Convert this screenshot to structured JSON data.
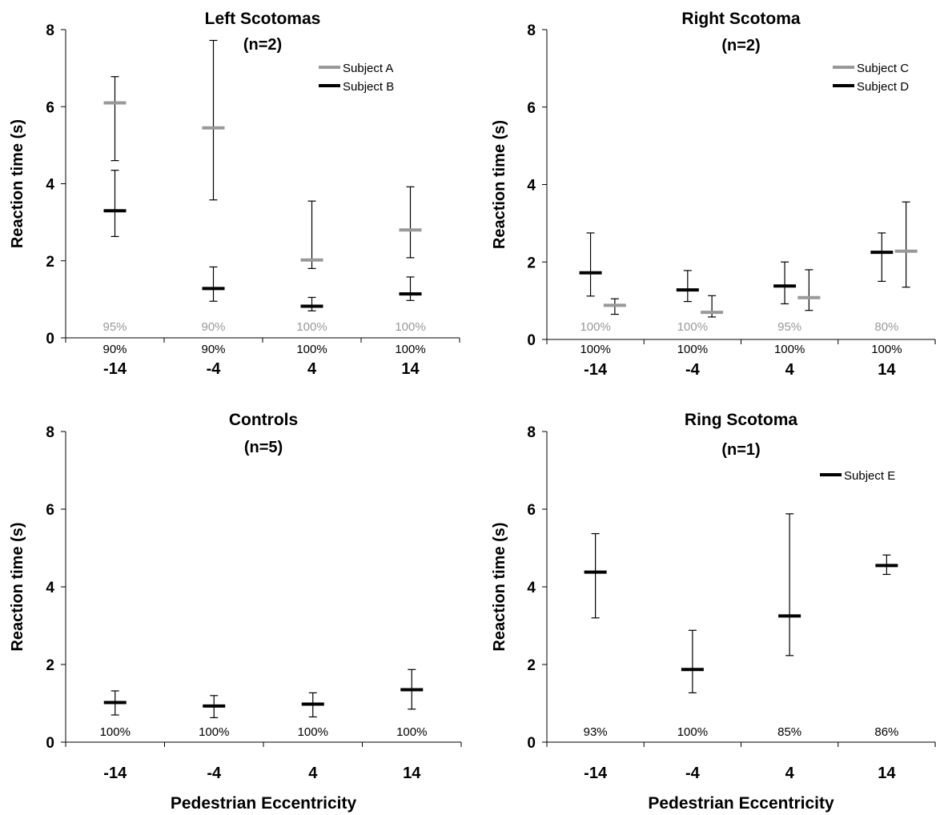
{
  "colors": {
    "dark": "#000000",
    "light": "#999999"
  },
  "chart_data": [
    {
      "type": "errorbar",
      "title": "Left Scotomas",
      "subtitle": "(n=2)",
      "ylabel": "Reaction time (s)",
      "xlabel": "",
      "ylim": [
        0,
        8
      ],
      "yticks": [
        0,
        2,
        4,
        6,
        8
      ],
      "categories": [
        "-14",
        "-4",
        "4",
        "14"
      ],
      "legend": "top-right",
      "series": [
        {
          "name": "Subject A",
          "color": "#999999",
          "offset": 0,
          "values": [
            6.1,
            5.45,
            2.02,
            2.8
          ],
          "lower": [
            4.6,
            3.58,
            1.8,
            2.08
          ],
          "upper": [
            6.78,
            7.72,
            3.55,
            3.92
          ]
        },
        {
          "name": "Subject B",
          "color": "#000000",
          "offset": 0,
          "values": [
            3.3,
            1.28,
            0.82,
            1.14
          ],
          "lower": [
            2.63,
            0.95,
            0.7,
            0.97
          ],
          "upper": [
            4.35,
            1.84,
            1.05,
            1.58
          ]
        }
      ],
      "annotations": [
        {
          "series": "Subject A",
          "row": "top",
          "labels": [
            "95%",
            "90%",
            "100%",
            "100%"
          ]
        },
        {
          "series": "Subject B",
          "row": "bottom",
          "labels": [
            "90%",
            "90%",
            "100%",
            "100%"
          ]
        }
      ]
    },
    {
      "type": "errorbar",
      "title": "Right Scotoma",
      "subtitle": "(n=2)",
      "ylabel": "Reaction time (s)",
      "xlabel": "",
      "ylim": [
        0,
        8
      ],
      "yticks": [
        0,
        2,
        4,
        6,
        8
      ],
      "categories": [
        "-14",
        "-4",
        "4",
        "14"
      ],
      "legend": "top-right",
      "series": [
        {
          "name": "Subject C",
          "color": "#999999",
          "offset": 0.2,
          "values": [
            0.88,
            0.7,
            1.08,
            2.28
          ],
          "lower": [
            0.65,
            0.58,
            0.75,
            1.35
          ],
          "upper": [
            1.05,
            1.13,
            1.8,
            3.55
          ]
        },
        {
          "name": "Subject D",
          "color": "#000000",
          "offset": -0.05,
          "values": [
            1.72,
            1.28,
            1.38,
            2.25
          ],
          "lower": [
            1.12,
            0.98,
            0.92,
            1.5
          ],
          "upper": [
            2.75,
            1.78,
            2.0,
            2.75
          ]
        }
      ],
      "annotations": [
        {
          "series": "Subject C",
          "row": "top",
          "labels": [
            "100%",
            "100%",
            "95%",
            "80%"
          ]
        },
        {
          "series": "Subject D",
          "row": "bottom",
          "labels": [
            "100%",
            "100%",
            "100%",
            "100%"
          ]
        }
      ]
    },
    {
      "type": "errorbar",
      "title": "Controls",
      "subtitle": "(n=5)",
      "ylabel": "Reaction time (s)",
      "xlabel": "Pedestrian Eccentricity",
      "ylim": [
        0,
        8
      ],
      "yticks": [
        0,
        2,
        4,
        6,
        8
      ],
      "categories": [
        "-14",
        "-4",
        "4",
        "14"
      ],
      "legend": "none",
      "series": [
        {
          "name": "",
          "color": "#000000",
          "offset": 0,
          "values": [
            1.02,
            0.93,
            0.98,
            1.35
          ],
          "lower": [
            0.7,
            0.63,
            0.65,
            0.85
          ],
          "upper": [
            1.32,
            1.2,
            1.27,
            1.87
          ]
        }
      ],
      "annotations": [
        {
          "series": "",
          "row": "single",
          "labels": [
            "100%",
            "100%",
            "100%",
            "100%"
          ]
        }
      ]
    },
    {
      "type": "errorbar",
      "title": "Ring Scotoma",
      "subtitle": "(n=1)",
      "ylabel": "Reaction time (s)",
      "xlabel": "Pedestrian Eccentricity",
      "ylim": [
        0,
        8
      ],
      "yticks": [
        0,
        2,
        4,
        6,
        8
      ],
      "categories": [
        "-14",
        "-4",
        "4",
        "14"
      ],
      "legend": "top-right",
      "series": [
        {
          "name": "Subject E",
          "color": "#000000",
          "offset": 0,
          "values": [
            4.38,
            1.87,
            3.25,
            4.55
          ],
          "lower": [
            3.2,
            1.27,
            2.23,
            4.32
          ],
          "upper": [
            5.37,
            2.88,
            5.88,
            4.82
          ]
        }
      ],
      "annotations": [
        {
          "series": "Subject E",
          "row": "single",
          "labels": [
            "93%",
            "100%",
            "85%",
            "86%"
          ]
        }
      ]
    }
  ]
}
